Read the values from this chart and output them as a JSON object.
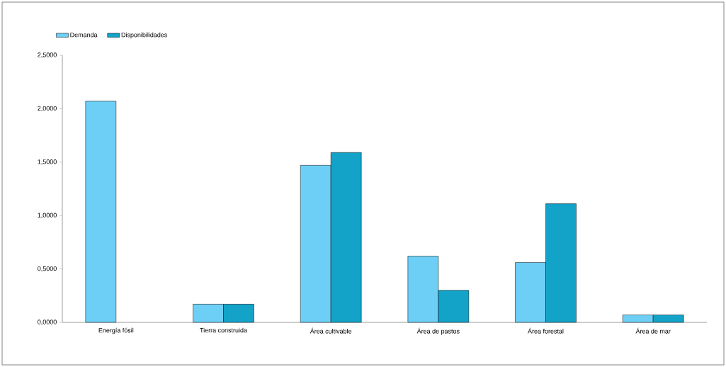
{
  "chart_data": {
    "type": "bar",
    "categories": [
      "Energía fósil",
      "Tierra construida",
      "Área cultivable",
      "Área de pastos",
      "Área forestal",
      "Área de mar"
    ],
    "series": [
      {
        "name": "Demanda",
        "color": "#6dcff6",
        "values": [
          2.07,
          0.17,
          1.47,
          0.62,
          0.56,
          0.07
        ]
      },
      {
        "name": "Disponibilidades",
        "color": "#13a3c9",
        "values": [
          null,
          0.17,
          1.59,
          0.3,
          1.11,
          0.07
        ]
      }
    ],
    "ylim": [
      0,
      2.5
    ],
    "yticks": [
      {
        "value": 0,
        "label": "0,0000"
      },
      {
        "value": 0.5,
        "label": "0,5000"
      },
      {
        "value": 1,
        "label": "1,0000"
      },
      {
        "value": 1.5,
        "label": "1,5000"
      },
      {
        "value": 2,
        "label": "2,0000"
      },
      {
        "value": 2.5,
        "label": "2,5000"
      }
    ],
    "grid": false,
    "legend": "top left"
  }
}
